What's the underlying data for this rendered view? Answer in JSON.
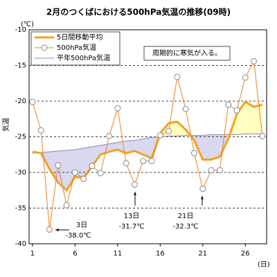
{
  "chart_data": {
    "type": "line",
    "title": "2月のつくばにおける500hPa気温の推移(09時)",
    "y_unit": "(℃)",
    "x_unit": "(日)",
    "y_label": "気温",
    "x": [
      1,
      2,
      3,
      4,
      5,
      6,
      7,
      8,
      9,
      10,
      11,
      12,
      13,
      14,
      15,
      16,
      17,
      18,
      19,
      20,
      21,
      22,
      23,
      24,
      25,
      26,
      27,
      28
    ],
    "series": [
      {
        "name": "5日間移動平均",
        "color": "#f5a020",
        "values": [
          -27.1,
          -27.3,
          -29.5,
          -31.4,
          -32.5,
          -30.6,
          -30.8,
          -29.1,
          -27.5,
          -27.1,
          -26.8,
          -27.3,
          -27.0,
          -27.5,
          -28.0,
          -24.5,
          -23.1,
          -22.9,
          -24.0,
          -25.5,
          -28.2,
          -28.2,
          -27.8,
          -25.3,
          -21.8,
          -20.1,
          -20.8,
          -20.5
        ]
      },
      {
        "name": "500hPa気温",
        "color": "#f08020",
        "values": [
          -20.1,
          -24.1,
          -38.0,
          -29.0,
          -34.6,
          -30.0,
          -30.9,
          -29.1,
          -30.1,
          -24.9,
          -21.0,
          -28.7,
          -31.7,
          -28.4,
          -28.4,
          -24.8,
          -24.2,
          -16.6,
          -21.1,
          -27.3,
          -32.3,
          -29.7,
          -29.7,
          -20.5,
          -21.3,
          -16.7,
          -14.4,
          -24.9
        ]
      },
      {
        "name": "平年500hPa気温",
        "color": "#8888aa",
        "values": [
          -27.3,
          -27.2,
          -27.1,
          -27.0,
          -26.9,
          -26.8,
          -26.6,
          -26.4,
          -26.2,
          -26.0,
          -25.8,
          -25.6,
          -25.5,
          -25.3,
          -25.1,
          -25.0,
          -24.9,
          -24.9,
          -24.8,
          -24.8,
          -24.8,
          -24.7,
          -24.7,
          -24.7,
          -24.7,
          -24.6,
          -24.6,
          -24.6
        ]
      }
    ],
    "fill_below_color": "#d8d8f0",
    "fill_above_color": "#ffffc0",
    "annotations": [
      "3日",
      "-38.0℃",
      "13日",
      "-31.7℃",
      "21日",
      "-32.3℃",
      "周期的に寒気が入る。"
    ],
    "xlim": [
      0.6,
      28.5
    ],
    "xticks": [
      1,
      6,
      11,
      16,
      21,
      26
    ],
    "ylim": [
      -40,
      -10
    ],
    "yticks": [
      -10,
      -15,
      -20,
      -25,
      -30,
      -35,
      -40
    ],
    "grid": true,
    "legend": "upper left"
  }
}
